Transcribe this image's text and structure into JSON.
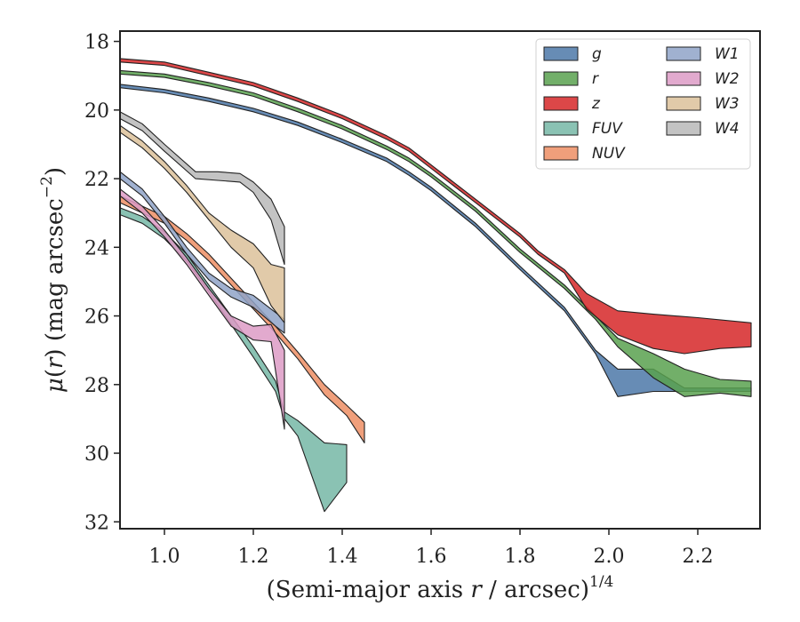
{
  "chart_data": {
    "type": "area",
    "xlabel": "(Semi-major axis r / arcsec)^{1/4}",
    "ylabel": "μ(r) (mag arcsec^{−2})",
    "xlim": [
      0.9,
      2.34
    ],
    "ylim": [
      32.2,
      17.7
    ],
    "y_inverted": true,
    "xticks": [
      1.0,
      1.2,
      1.4,
      1.6,
      1.8,
      2.0,
      2.2
    ],
    "yticks": [
      18,
      20,
      22,
      24,
      26,
      28,
      30,
      32
    ],
    "xtick_labels": [
      "1.0",
      "1.2",
      "1.4",
      "1.6",
      "1.8",
      "2.0",
      "2.2"
    ],
    "ytick_labels": [
      "18",
      "20",
      "22",
      "24",
      "26",
      "28",
      "30",
      "32"
    ],
    "legend_position": "top-right",
    "grid": false,
    "series": [
      {
        "name": "g",
        "color": "#4c78a8",
        "upper": [
          [
            0.9,
            19.25
          ],
          [
            1.0,
            19.4
          ],
          [
            1.1,
            19.65
          ],
          [
            1.2,
            19.95
          ],
          [
            1.3,
            20.35
          ],
          [
            1.4,
            20.85
          ],
          [
            1.5,
            21.4
          ],
          [
            1.55,
            21.8
          ],
          [
            1.6,
            22.25
          ],
          [
            1.7,
            23.3
          ],
          [
            1.8,
            24.55
          ],
          [
            1.9,
            25.75
          ],
          [
            1.97,
            27.0
          ],
          [
            2.02,
            27.55
          ],
          [
            2.1,
            27.55
          ],
          [
            2.17,
            28.1
          ],
          [
            2.32,
            28.1
          ]
        ],
        "lower": [
          [
            0.9,
            19.35
          ],
          [
            1.0,
            19.5
          ],
          [
            1.1,
            19.75
          ],
          [
            1.2,
            20.05
          ],
          [
            1.3,
            20.45
          ],
          [
            1.4,
            20.95
          ],
          [
            1.5,
            21.5
          ],
          [
            1.55,
            21.9
          ],
          [
            1.6,
            22.35
          ],
          [
            1.7,
            23.4
          ],
          [
            1.8,
            24.65
          ],
          [
            1.9,
            25.85
          ],
          [
            1.97,
            27.1
          ],
          [
            2.02,
            28.35
          ],
          [
            2.1,
            28.2
          ],
          [
            2.17,
            28.2
          ],
          [
            2.32,
            28.2
          ]
        ]
      },
      {
        "name": "r",
        "color": "#59a14f",
        "upper": [
          [
            0.9,
            18.85
          ],
          [
            1.0,
            18.95
          ],
          [
            1.1,
            19.2
          ],
          [
            1.2,
            19.5
          ],
          [
            1.3,
            19.95
          ],
          [
            1.4,
            20.45
          ],
          [
            1.5,
            21.05
          ],
          [
            1.55,
            21.4
          ],
          [
            1.6,
            21.85
          ],
          [
            1.7,
            22.85
          ],
          [
            1.8,
            24.05
          ],
          [
            1.9,
            25.1
          ],
          [
            1.97,
            26.0
          ],
          [
            2.02,
            26.65
          ],
          [
            2.1,
            27.1
          ],
          [
            2.17,
            27.55
          ],
          [
            2.25,
            27.85
          ],
          [
            2.32,
            27.9
          ]
        ],
        "lower": [
          [
            0.9,
            18.95
          ],
          [
            1.0,
            19.05
          ],
          [
            1.1,
            19.3
          ],
          [
            1.2,
            19.6
          ],
          [
            1.3,
            20.05
          ],
          [
            1.4,
            20.55
          ],
          [
            1.5,
            21.15
          ],
          [
            1.55,
            21.5
          ],
          [
            1.6,
            21.95
          ],
          [
            1.7,
            22.95
          ],
          [
            1.8,
            24.15
          ],
          [
            1.9,
            25.2
          ],
          [
            1.97,
            26.1
          ],
          [
            2.02,
            26.9
          ],
          [
            2.1,
            27.8
          ],
          [
            2.17,
            28.35
          ],
          [
            2.25,
            28.25
          ],
          [
            2.32,
            28.35
          ]
        ]
      },
      {
        "name": "z",
        "color": "#d62728",
        "upper": [
          [
            0.9,
            18.5
          ],
          [
            1.0,
            18.6
          ],
          [
            1.1,
            18.9
          ],
          [
            1.2,
            19.2
          ],
          [
            1.3,
            19.65
          ],
          [
            1.4,
            20.15
          ],
          [
            1.5,
            20.75
          ],
          [
            1.55,
            21.1
          ],
          [
            1.6,
            21.6
          ],
          [
            1.7,
            22.6
          ],
          [
            1.8,
            23.6
          ],
          [
            1.84,
            24.1
          ],
          [
            1.9,
            24.65
          ],
          [
            1.95,
            25.35
          ],
          [
            2.02,
            25.85
          ],
          [
            2.1,
            25.95
          ],
          [
            2.2,
            26.05
          ],
          [
            2.32,
            26.2
          ]
        ],
        "lower": [
          [
            0.9,
            18.6
          ],
          [
            1.0,
            18.7
          ],
          [
            1.1,
            19.0
          ],
          [
            1.2,
            19.3
          ],
          [
            1.3,
            19.75
          ],
          [
            1.4,
            20.25
          ],
          [
            1.5,
            20.85
          ],
          [
            1.55,
            21.2
          ],
          [
            1.6,
            21.7
          ],
          [
            1.7,
            22.7
          ],
          [
            1.8,
            23.7
          ],
          [
            1.84,
            24.2
          ],
          [
            1.9,
            24.75
          ],
          [
            1.95,
            25.8
          ],
          [
            2.02,
            26.55
          ],
          [
            2.1,
            26.95
          ],
          [
            2.17,
            27.1
          ],
          [
            2.25,
            26.95
          ],
          [
            2.32,
            26.9
          ]
        ]
      },
      {
        "name": "FUV",
        "color": "#76b7a6",
        "upper": [
          [
            0.9,
            22.85
          ],
          [
            0.95,
            23.1
          ],
          [
            1.0,
            23.55
          ],
          [
            1.05,
            24.2
          ],
          [
            1.1,
            25.1
          ],
          [
            1.15,
            26.0
          ],
          [
            1.2,
            26.9
          ],
          [
            1.25,
            27.9
          ],
          [
            1.27,
            28.8
          ],
          [
            1.3,
            29.05
          ],
          [
            1.36,
            29.7
          ],
          [
            1.41,
            29.75
          ],
          [
            1.41,
            30.85
          ]
        ],
        "lower": [
          [
            0.9,
            23.05
          ],
          [
            0.95,
            23.3
          ],
          [
            1.0,
            23.75
          ],
          [
            1.05,
            24.4
          ],
          [
            1.1,
            25.3
          ],
          [
            1.15,
            26.25
          ],
          [
            1.2,
            27.2
          ],
          [
            1.25,
            28.2
          ],
          [
            1.27,
            29.0
          ],
          [
            1.3,
            29.5
          ],
          [
            1.36,
            31.7
          ],
          [
            1.41,
            30.85
          ]
        ]
      },
      {
        "name": "NUV",
        "color": "#ed8e64",
        "upper": [
          [
            0.9,
            22.5
          ],
          [
            1.0,
            23.1
          ],
          [
            1.05,
            23.6
          ],
          [
            1.1,
            24.2
          ],
          [
            1.15,
            24.9
          ],
          [
            1.2,
            25.6
          ],
          [
            1.25,
            26.3
          ],
          [
            1.3,
            27.05
          ],
          [
            1.36,
            28.0
          ],
          [
            1.41,
            28.6
          ],
          [
            1.45,
            29.1
          ]
        ],
        "lower": [
          [
            0.9,
            22.7
          ],
          [
            1.0,
            23.3
          ],
          [
            1.05,
            23.8
          ],
          [
            1.1,
            24.4
          ],
          [
            1.15,
            25.1
          ],
          [
            1.2,
            25.8
          ],
          [
            1.25,
            26.5
          ],
          [
            1.3,
            27.25
          ],
          [
            1.36,
            28.3
          ],
          [
            1.41,
            28.9
          ],
          [
            1.45,
            29.7
          ]
        ]
      },
      {
        "name": "W1",
        "color": "#8fa3c8",
        "upper": [
          [
            0.9,
            21.8
          ],
          [
            0.95,
            22.3
          ],
          [
            1.0,
            23.1
          ],
          [
            1.05,
            24.0
          ],
          [
            1.1,
            24.75
          ],
          [
            1.15,
            25.2
          ],
          [
            1.2,
            25.4
          ],
          [
            1.25,
            25.9
          ],
          [
            1.27,
            26.1
          ]
        ],
        "lower": [
          [
            0.9,
            22.0
          ],
          [
            0.95,
            22.5
          ],
          [
            1.0,
            23.3
          ],
          [
            1.05,
            24.2
          ],
          [
            1.1,
            24.95
          ],
          [
            1.15,
            25.45
          ],
          [
            1.2,
            25.75
          ],
          [
            1.25,
            26.3
          ],
          [
            1.27,
            26.5
          ]
        ]
      },
      {
        "name": "W2",
        "color": "#dd9bc6",
        "upper": [
          [
            0.9,
            22.3
          ],
          [
            0.95,
            22.8
          ],
          [
            1.0,
            23.5
          ],
          [
            1.05,
            24.3
          ],
          [
            1.1,
            25.2
          ],
          [
            1.15,
            26.0
          ],
          [
            1.2,
            26.3
          ],
          [
            1.24,
            26.25
          ],
          [
            1.27,
            27.0
          ]
        ],
        "lower": [
          [
            0.9,
            22.5
          ],
          [
            0.95,
            23.0
          ],
          [
            1.0,
            23.7
          ],
          [
            1.05,
            24.5
          ],
          [
            1.1,
            25.4
          ],
          [
            1.15,
            26.3
          ],
          [
            1.2,
            26.7
          ],
          [
            1.24,
            26.75
          ],
          [
            1.27,
            29.3
          ]
        ]
      },
      {
        "name": "W3",
        "color": "#dcc19a",
        "upper": [
          [
            0.9,
            20.45
          ],
          [
            0.95,
            20.9
          ],
          [
            1.0,
            21.5
          ],
          [
            1.05,
            22.2
          ],
          [
            1.1,
            23.0
          ],
          [
            1.15,
            23.5
          ],
          [
            1.2,
            23.9
          ],
          [
            1.24,
            24.5
          ],
          [
            1.27,
            24.6
          ]
        ],
        "lower": [
          [
            0.9,
            20.65
          ],
          [
            0.95,
            21.1
          ],
          [
            1.0,
            21.7
          ],
          [
            1.05,
            22.4
          ],
          [
            1.1,
            23.2
          ],
          [
            1.15,
            24.0
          ],
          [
            1.2,
            24.6
          ],
          [
            1.24,
            25.7
          ],
          [
            1.27,
            26.2
          ]
        ]
      },
      {
        "name": "W4",
        "color": "#b9b9b9",
        "upper": [
          [
            0.9,
            20.05
          ],
          [
            0.95,
            20.4
          ],
          [
            1.0,
            21.0
          ],
          [
            1.07,
            21.8
          ],
          [
            1.12,
            21.8
          ],
          [
            1.17,
            21.85
          ],
          [
            1.2,
            22.1
          ],
          [
            1.24,
            22.6
          ],
          [
            1.27,
            23.4
          ]
        ],
        "lower": [
          [
            0.9,
            20.25
          ],
          [
            0.95,
            20.6
          ],
          [
            1.0,
            21.2
          ],
          [
            1.07,
            22.0
          ],
          [
            1.12,
            22.05
          ],
          [
            1.17,
            22.1
          ],
          [
            1.2,
            22.4
          ],
          [
            1.24,
            23.2
          ],
          [
            1.27,
            24.5
          ]
        ]
      }
    ]
  }
}
